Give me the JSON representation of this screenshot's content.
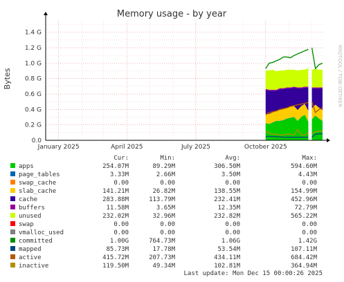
{
  "chart_data": {
    "type": "area",
    "title": "Memory usage - by year",
    "side_text": "RRDTOOL / TOBI OETIKER",
    "ylabel": "Bytes",
    "ylim": [
      0,
      1.55
    ],
    "yticks": [
      {
        "v": 0.0,
        "label": "0.0"
      },
      {
        "v": 0.2,
        "label": "0.2 G"
      },
      {
        "v": 0.4,
        "label": "0.4 G"
      },
      {
        "v": 0.6,
        "label": "0.6 G"
      },
      {
        "v": 0.8,
        "label": "0.8 G"
      },
      {
        "v": 1.0,
        "label": "1.0 G"
      },
      {
        "v": 1.2,
        "label": "1.2 G"
      },
      {
        "v": 1.4,
        "label": "1.4 G"
      }
    ],
    "xlim": [
      "2024-12-15",
      "2025-12-15"
    ],
    "xticks": [
      {
        "date": "2025-01-01",
        "label": "January 2025"
      },
      {
        "date": "2025-04-01",
        "label": "April 2025"
      },
      {
        "date": "2025-07-01",
        "label": "July 2025"
      },
      {
        "date": "2025-10-01",
        "label": "October 2025"
      }
    ],
    "data_start": "2025-10-01",
    "gap_at": "2025-12-01",
    "grid": true,
    "stack": [
      {
        "name": "apps",
        "color": "#00cc00",
        "values": [
          0.22,
          0.21,
          0.23,
          0.25,
          0.25,
          0.26,
          0.28,
          0.29,
          0.3,
          0.25,
          0.3,
          0.33,
          0.24,
          0.27,
          0.32,
          0.28,
          0.25
        ]
      },
      {
        "name": "page_tables",
        "color": "#0066b3",
        "values": [
          0.003,
          0.003,
          0.003,
          0.003,
          0.003,
          0.003,
          0.003,
          0.003,
          0.003,
          0.003,
          0.003,
          0.003,
          0.003,
          0.003,
          0.003,
          0.003,
          0.003
        ]
      },
      {
        "name": "swap_cache",
        "color": "#ff8000",
        "values": [
          0,
          0,
          0,
          0,
          0,
          0,
          0,
          0,
          0,
          0,
          0,
          0,
          0,
          0,
          0,
          0,
          0
        ]
      },
      {
        "name": "slab_cache",
        "color": "#ffcc00",
        "values": [
          0.12,
          0.13,
          0.13,
          0.13,
          0.14,
          0.14,
          0.14,
          0.14,
          0.14,
          0.14,
          0.14,
          0.14,
          0.14,
          0.14,
          0.14,
          0.14,
          0.14
        ]
      },
      {
        "name": "cache",
        "color": "#330099",
        "values": [
          0.31,
          0.3,
          0.28,
          0.26,
          0.27,
          0.26,
          0.25,
          0.24,
          0.24,
          0.28,
          0.23,
          0.21,
          0.3,
          0.26,
          0.21,
          0.25,
          0.28
        ]
      },
      {
        "name": "buffers",
        "color": "#990099",
        "values": [
          0.012,
          0.012,
          0.012,
          0.012,
          0.012,
          0.012,
          0.012,
          0.012,
          0.012,
          0.012,
          0.012,
          0.012,
          0.012,
          0.012,
          0.012,
          0.012,
          0.012
        ]
      },
      {
        "name": "unused",
        "color": "#ccff00",
        "values": [
          0.24,
          0.25,
          0.26,
          0.24,
          0.23,
          0.23,
          0.23,
          0.23,
          0.22,
          0.22,
          0.23,
          0.22,
          0.24,
          0.23,
          0.24,
          0.23,
          0.23
        ]
      }
    ],
    "lines": [
      {
        "name": "committed",
        "color": "#008f00",
        "values": [
          0.93,
          1.0,
          1.01,
          1.03,
          1.05,
          1.08,
          1.08,
          1.07,
          1.1,
          1.12,
          1.14,
          1.16,
          1.18,
          1.2,
          0.93,
          0.98,
          1.0
        ]
      },
      {
        "name": "mapped",
        "color": "#00487d",
        "values": [
          0.05,
          0.05,
          0.05,
          0.045,
          0.045,
          0.04,
          0.04,
          0.04,
          0.04,
          0.04,
          0.04,
          0.04,
          0.04,
          0.04,
          0.08,
          0.085,
          0.086
        ]
      },
      {
        "name": "active",
        "color": "#b35a00",
        "values": [
          0.33,
          0.36,
          0.37,
          0.38,
          0.4,
          0.41,
          0.42,
          0.44,
          0.45,
          0.46,
          0.47,
          0.48,
          0.49,
          0.5,
          0.36,
          0.4,
          0.42
        ]
      },
      {
        "name": "inactive",
        "color": "#b38f00",
        "values": [
          0.12,
          0.09,
          0.08,
          0.08,
          0.07,
          0.07,
          0.08,
          0.08,
          0.07,
          0.14,
          0.07,
          0.07,
          0.1,
          0.09,
          0.11,
          0.12,
          0.12
        ]
      }
    ],
    "legend_headers": [
      "Cur:",
      "Min:",
      "Avg:",
      "Max:"
    ],
    "legend": [
      {
        "name": "apps",
        "color": "#00cc00",
        "cur": "254.07M",
        "min": "89.29M",
        "avg": "306.50M",
        "max": "594.60M"
      },
      {
        "name": "page_tables",
        "color": "#0066b3",
        "cur": "3.33M",
        "min": "2.66M",
        "avg": "3.50M",
        "max": "4.43M"
      },
      {
        "name": "swap_cache",
        "color": "#ff8000",
        "cur": "0.00",
        "min": "0.00",
        "avg": "0.00",
        "max": "0.00"
      },
      {
        "name": "slab_cache",
        "color": "#ffcc00",
        "cur": "141.21M",
        "min": "26.82M",
        "avg": "138.55M",
        "max": "154.99M"
      },
      {
        "name": "cache",
        "color": "#330099",
        "cur": "283.88M",
        "min": "113.79M",
        "avg": "232.41M",
        "max": "452.96M"
      },
      {
        "name": "buffers",
        "color": "#990099",
        "cur": "11.58M",
        "min": "3.65M",
        "avg": "12.35M",
        "max": "72.79M"
      },
      {
        "name": "unused",
        "color": "#ccff00",
        "cur": "232.02M",
        "min": "32.96M",
        "avg": "232.82M",
        "max": "565.22M"
      },
      {
        "name": "swap",
        "color": "#ff0000",
        "cur": "0.00",
        "min": "0.00",
        "avg": "0.00",
        "max": "0.00"
      },
      {
        "name": "vmalloc_used",
        "color": "#808080",
        "cur": "0.00",
        "min": "0.00",
        "avg": "0.00",
        "max": "0.00"
      },
      {
        "name": "committed",
        "color": "#008f00",
        "cur": "1.00G",
        "min": "764.73M",
        "avg": "1.06G",
        "max": "1.42G"
      },
      {
        "name": "mapped",
        "color": "#00487d",
        "cur": "85.73M",
        "min": "17.78M",
        "avg": "53.54M",
        "max": "107.11M"
      },
      {
        "name": "active",
        "color": "#b35a00",
        "cur": "415.72M",
        "min": "207.73M",
        "avg": "434.11M",
        "max": "684.42M"
      },
      {
        "name": "inactive",
        "color": "#b38f00",
        "cur": "119.50M",
        "min": "49.34M",
        "avg": "102.81M",
        "max": "364.94M"
      }
    ],
    "last_update": "Last update: Mon Dec 15 00:00:26 2025"
  }
}
